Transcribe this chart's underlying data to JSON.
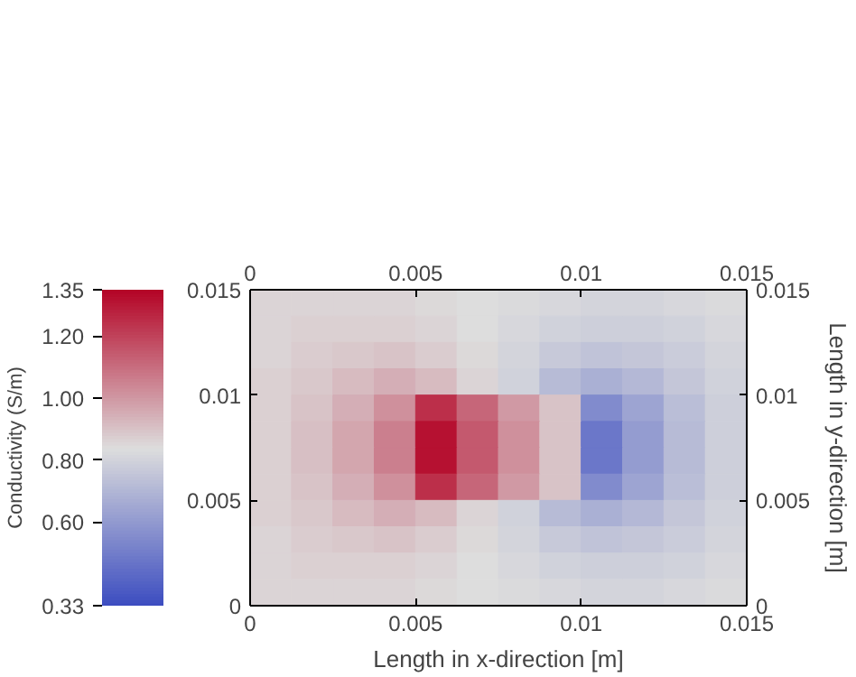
{
  "chart_data": {
    "type": "heatmap",
    "x": [
      0.000625,
      0.001875,
      0.003125,
      0.004375,
      0.005625,
      0.006875,
      0.008125,
      0.009375,
      0.010625,
      0.011875,
      0.013125,
      0.014375
    ],
    "y": [
      0.014375,
      0.013125,
      0.011875,
      0.010625,
      0.009375,
      0.008125,
      0.006875,
      0.005625,
      0.004375,
      0.003125,
      0.001875,
      0.000625
    ],
    "cells": [
      [
        0.86,
        0.86,
        0.86,
        0.86,
        0.85,
        0.84,
        0.83,
        0.82,
        0.81,
        0.81,
        0.82,
        0.83
      ],
      [
        0.86,
        0.87,
        0.87,
        0.87,
        0.86,
        0.84,
        0.82,
        0.8,
        0.79,
        0.79,
        0.8,
        0.82
      ],
      [
        0.86,
        0.88,
        0.89,
        0.9,
        0.88,
        0.85,
        0.81,
        0.77,
        0.75,
        0.76,
        0.78,
        0.81
      ],
      [
        0.87,
        0.89,
        0.92,
        0.95,
        0.92,
        0.86,
        0.8,
        0.72,
        0.68,
        0.71,
        0.76,
        0.8
      ],
      [
        0.87,
        0.9,
        0.95,
        1.02,
        1.25,
        1.12,
        1.0,
        0.9,
        0.55,
        0.64,
        0.73,
        0.79
      ],
      [
        0.87,
        0.91,
        0.97,
        1.06,
        1.32,
        1.15,
        1.02,
        0.9,
        0.48,
        0.61,
        0.72,
        0.79
      ],
      [
        0.87,
        0.91,
        0.97,
        1.06,
        1.32,
        1.15,
        1.02,
        0.9,
        0.48,
        0.61,
        0.72,
        0.79
      ],
      [
        0.87,
        0.9,
        0.95,
        1.02,
        1.25,
        1.12,
        1.0,
        0.9,
        0.55,
        0.64,
        0.73,
        0.79
      ],
      [
        0.87,
        0.89,
        0.92,
        0.95,
        0.92,
        0.86,
        0.8,
        0.72,
        0.68,
        0.71,
        0.76,
        0.8
      ],
      [
        0.86,
        0.88,
        0.89,
        0.9,
        0.88,
        0.85,
        0.81,
        0.77,
        0.75,
        0.76,
        0.78,
        0.81
      ],
      [
        0.86,
        0.87,
        0.87,
        0.87,
        0.86,
        0.84,
        0.82,
        0.8,
        0.79,
        0.79,
        0.8,
        0.82
      ],
      [
        0.86,
        0.86,
        0.86,
        0.86,
        0.85,
        0.84,
        0.83,
        0.82,
        0.81,
        0.81,
        0.82,
        0.83
      ]
    ],
    "colors": [
      "#3b4cc0",
      "#dddddd",
      "#b40426"
    ],
    "xlim": [
      0,
      0.015
    ],
    "xticks": [
      0,
      0.005,
      0.01,
      0.015
    ],
    "x2lim": [
      0,
      0.015
    ],
    "x2ticks": [
      0,
      0.005,
      0.01,
      0.015
    ],
    "ylim": [
      0,
      0.015
    ],
    "yticks": [
      0,
      0.005,
      0.01,
      0.015
    ],
    "y2lim": [
      0,
      0.015
    ],
    "y2ticks": [
      0,
      0.005,
      0.01,
      0.015
    ],
    "xlabel": "Length in x-direction [m]",
    "y2label": "Length in y-direction [m]",
    "clabel": "Conductivity (S/m)",
    "clim": [
      0.33,
      1.35
    ],
    "cticks": [
      0.33,
      {
        "value": 0.6,
        "label": "0.60"
      },
      {
        "value": 0.8,
        "label": "0.80"
      },
      {
        "value": 1.0,
        "label": "1.00"
      },
      {
        "value": 1.2,
        "label": "1.20"
      },
      1.35
    ]
  }
}
